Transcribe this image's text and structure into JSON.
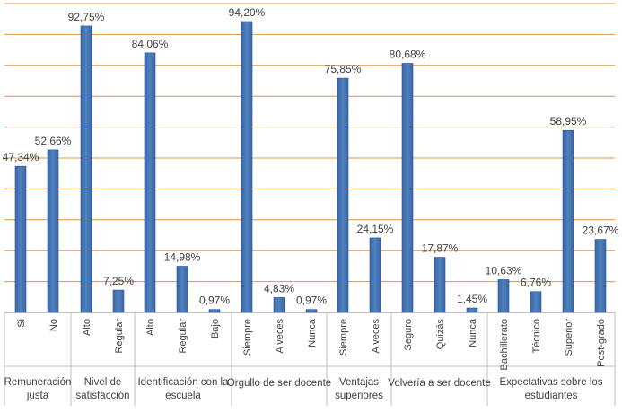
{
  "chart_data": {
    "type": "bar",
    "ylim": [
      0,
      100
    ],
    "grid": true,
    "gridlines": [
      10,
      20,
      30,
      40,
      50,
      60,
      70,
      80,
      90,
      100
    ],
    "bar_color": "#4f81bd",
    "grid_color": "#e0963a",
    "groups": [
      {
        "label": "Remuneración justa",
        "label_lines": [
          "Remuneración",
          "justa"
        ],
        "categories": [
          "Si",
          "No"
        ],
        "values": [
          47.34,
          52.66
        ],
        "value_labels": [
          "47,34%",
          "52,66%"
        ]
      },
      {
        "label": "Nivel de satisfacción",
        "label_lines": [
          "Nivel de",
          "satisfacción"
        ],
        "categories": [
          "Alto",
          "Regular"
        ],
        "values": [
          92.75,
          7.25
        ],
        "value_labels": [
          "92,75%",
          "7,25%"
        ]
      },
      {
        "label": "Identificación con la escuela",
        "label_lines": [
          "Identificación con la",
          "escuela"
        ],
        "categories": [
          "Alto",
          "Regular",
          "Bajo"
        ],
        "values": [
          84.06,
          14.98,
          0.97
        ],
        "value_labels": [
          "84,06%",
          "14,98%",
          "0,97%"
        ]
      },
      {
        "label": "Orgullo de ser docente",
        "label_lines": [
          "Orgullo de ser docente"
        ],
        "categories": [
          "Siempre",
          "A veces",
          "Nunca"
        ],
        "values": [
          94.2,
          4.83,
          0.97
        ],
        "value_labels": [
          "94,20%",
          "4,83%",
          "0,97%"
        ]
      },
      {
        "label": "Ventajas superiores",
        "label_lines": [
          "Ventajas",
          "superiores"
        ],
        "categories": [
          "Siempre",
          "A veces"
        ],
        "values": [
          75.85,
          24.15
        ],
        "value_labels": [
          "75,85%",
          "24,15%"
        ]
      },
      {
        "label": "Volvería a ser docente",
        "label_lines": [
          "Volvería a ser docente"
        ],
        "categories": [
          "Seguro",
          "Quizás",
          "Nunca"
        ],
        "values": [
          80.68,
          17.87,
          1.45
        ],
        "value_labels": [
          "80,68%",
          "17,87%",
          "1,45%"
        ]
      },
      {
        "label": "Expectativas sobre los estudiantes",
        "label_lines": [
          "Expectativas sobre los",
          "estudiantes"
        ],
        "categories": [
          "Bachillerato",
          "Técnico",
          "Superior",
          "Post-grado"
        ],
        "values": [
          10.63,
          6.76,
          58.95,
          23.67
        ],
        "value_labels": [
          "10,63%",
          "6,76%",
          "58,95%",
          "23,67%"
        ]
      }
    ]
  }
}
